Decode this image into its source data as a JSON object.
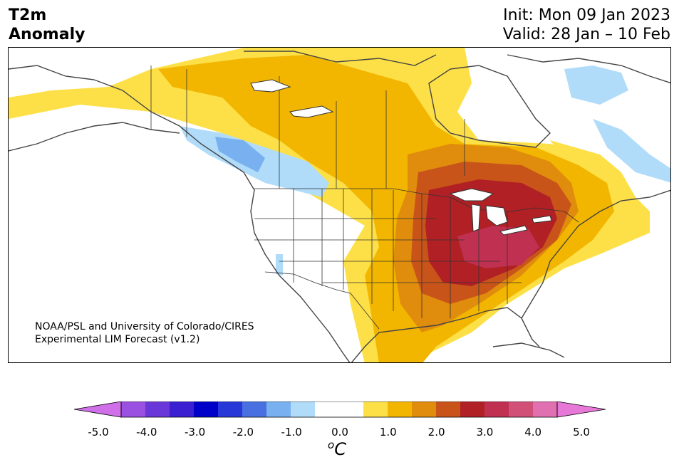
{
  "title": {
    "line1": "T2m",
    "line2": "Anomaly"
  },
  "init": "Init: Mon 09 Jan 2023",
  "valid": "Valid: 28 Jan – 10 Feb",
  "credit": {
    "line1": "NOAA/PSL and University of Colorado/CIRES",
    "line2": "Experimental LIM Forecast (v1.2)"
  },
  "colorbar": {
    "colors": [
      "#d070e8",
      "#9a50e0",
      "#6a38d8",
      "#3a20d0",
      "#0000c8",
      "#2838d8",
      "#4870e0",
      "#78b0f0",
      "#b0dcfa",
      "#ffffff",
      "#ffffff",
      "#fde047",
      "#f2b600",
      "#e08c0c",
      "#c8541a",
      "#b02024",
      "#c03050",
      "#d05078",
      "#e070b0",
      "#e878d8"
    ],
    "ticks": [
      "-5.0",
      "-4.0",
      "-3.0",
      "-2.0",
      "-1.0",
      "0.0",
      "1.0",
      "2.0",
      "3.0",
      "4.0",
      "5.0"
    ],
    "unit_sup": "o",
    "unit": "C"
  },
  "map": {
    "region": "North America"
  }
}
